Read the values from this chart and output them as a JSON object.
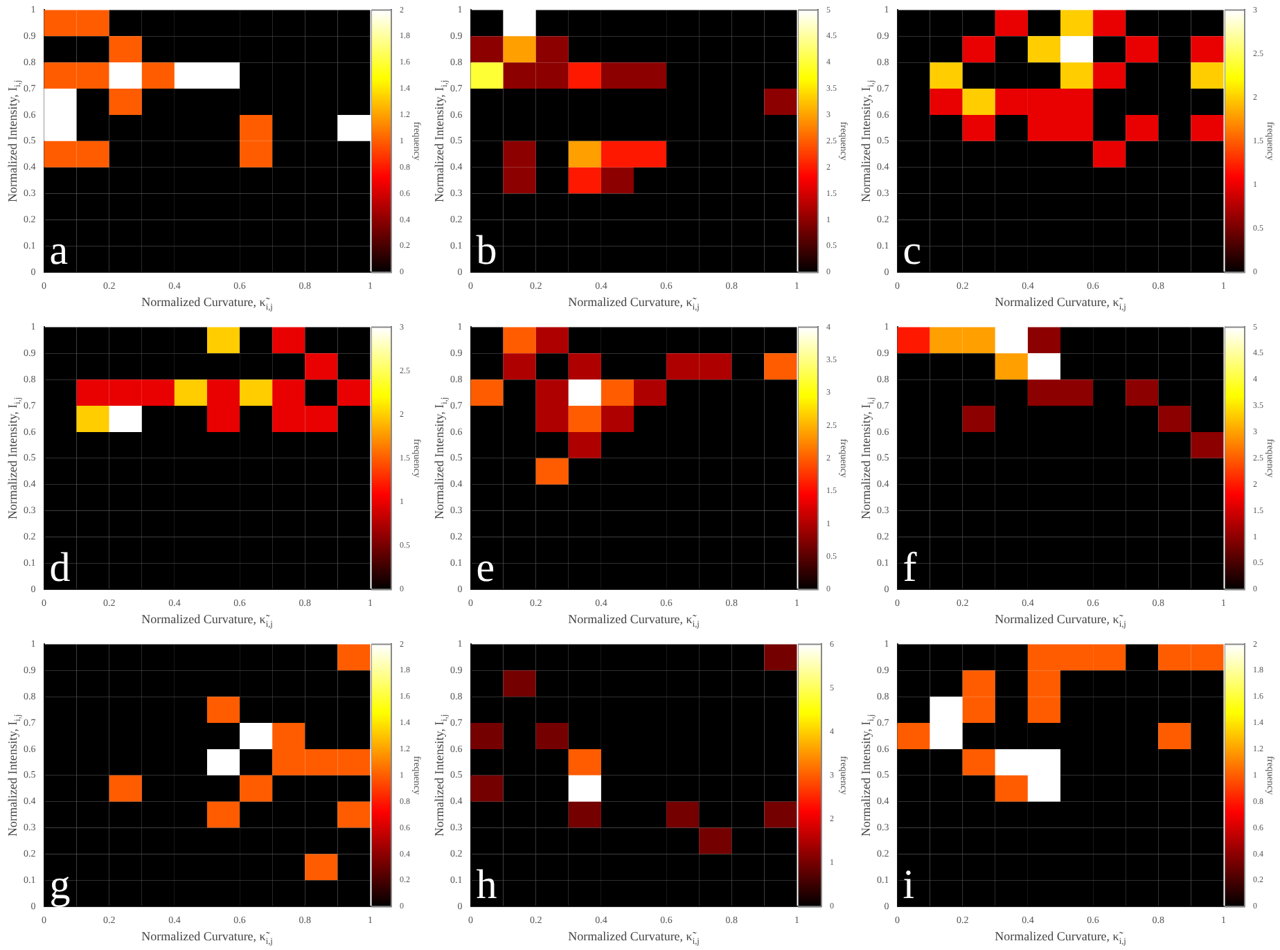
{
  "chart_data": [
    {
      "type": "heatmap",
      "title": "a",
      "xlabel": "Normalized Curvature, κ̃$_{i,j}$",
      "ylabel": "Normalized Intensity, I$_{i,j}$",
      "clabel": "frequency",
      "cells": [
        [
          1,
          1,
          0,
          0,
          0,
          0,
          0,
          0,
          0,
          0
        ],
        [
          0,
          0,
          1,
          0,
          0,
          0,
          0,
          0,
          0,
          0
        ],
        [
          1,
          1,
          2,
          1,
          2,
          2,
          0,
          0,
          0,
          0
        ],
        [
          2,
          0,
          1,
          0,
          0,
          0,
          0,
          0,
          0,
          0
        ],
        [
          2,
          0,
          0,
          0,
          0,
          0,
          1,
          0,
          0,
          2
        ],
        [
          1,
          1,
          0,
          0,
          0,
          0,
          1,
          0,
          0,
          0
        ],
        [
          0,
          0,
          0,
          0,
          0,
          0,
          0,
          0,
          0,
          0
        ],
        [
          0,
          0,
          0,
          0,
          0,
          0,
          0,
          0,
          0,
          0
        ],
        [
          0,
          0,
          0,
          0,
          0,
          0,
          0,
          0,
          0,
          0
        ],
        [
          0,
          0,
          0,
          0,
          0,
          0,
          0,
          0,
          0,
          0
        ]
      ],
      "clim": [
        0,
        2
      ],
      "cticks": [
        0,
        0.2,
        0.4,
        0.6,
        0.8,
        1,
        1.2,
        1.4,
        1.6,
        1.8,
        2
      ],
      "xlim": [
        0,
        1
      ],
      "xticks": [
        0,
        0.2,
        0.4,
        0.6,
        0.8,
        1
      ],
      "ylim": [
        0,
        1
      ],
      "yticks": [
        0,
        0.1,
        0.2,
        0.3,
        0.4,
        0.5,
        0.6,
        0.7,
        0.8,
        0.9,
        1
      ]
    },
    {
      "type": "heatmap",
      "title": "b",
      "xlabel": "Normalized Curvature, κ̃$_{i,j}$",
      "ylabel": "Normalized Intensity, I$_{i,j}$",
      "clabel": "frequency",
      "cells": [
        [
          0,
          5,
          0,
          0,
          0,
          0,
          0,
          0,
          0,
          0
        ],
        [
          1,
          3,
          1,
          0,
          0,
          0,
          0,
          0,
          0,
          0
        ],
        [
          4,
          1,
          1,
          2,
          1,
          1,
          0,
          0,
          0,
          0
        ],
        [
          0,
          0,
          0,
          0,
          0,
          0,
          0,
          0,
          0,
          1
        ],
        [
          0,
          0,
          0,
          0,
          0,
          0,
          0,
          0,
          0,
          0
        ],
        [
          0,
          1,
          0,
          3,
          2,
          2,
          0,
          0,
          0,
          0
        ],
        [
          0,
          1,
          0,
          2,
          1,
          0,
          0,
          0,
          0,
          0
        ],
        [
          0,
          0,
          0,
          0,
          0,
          0,
          0,
          0,
          0,
          0
        ],
        [
          0,
          0,
          0,
          0,
          0,
          0,
          0,
          0,
          0,
          0
        ],
        [
          0,
          0,
          0,
          0,
          0,
          0,
          0,
          0,
          0,
          0
        ]
      ],
      "clim": [
        0,
        5
      ],
      "cticks": [
        0,
        0.5,
        1,
        1.5,
        2,
        2.5,
        3,
        3.5,
        4,
        4.5,
        5
      ],
      "xlim": [
        0,
        1
      ],
      "xticks": [
        0,
        0.2,
        0.4,
        0.6,
        0.8,
        1
      ],
      "ylim": [
        0,
        1
      ],
      "yticks": [
        0,
        0.1,
        0.2,
        0.3,
        0.4,
        0.5,
        0.6,
        0.7,
        0.8,
        0.9,
        1
      ]
    },
    {
      "type": "heatmap",
      "title": "c",
      "xlabel": "Normalized Curvature, κ̃$_{i,j}$",
      "ylabel": "Normalized Intensity, I$_{i,j}$",
      "clabel": "frequency",
      "cells": [
        [
          0,
          0,
          0,
          1,
          0,
          2,
          1,
          0,
          0,
          0
        ],
        [
          0,
          0,
          1,
          0,
          2,
          3,
          0,
          1,
          0,
          1
        ],
        [
          0,
          2,
          0,
          0,
          0,
          2,
          1,
          0,
          0,
          2
        ],
        [
          0,
          1,
          2,
          1,
          1,
          1,
          0,
          0,
          0,
          0
        ],
        [
          0,
          0,
          1,
          0,
          1,
          1,
          0,
          1,
          0,
          1
        ],
        [
          0,
          0,
          0,
          0,
          0,
          0,
          1,
          0,
          0,
          0
        ],
        [
          0,
          0,
          0,
          0,
          0,
          0,
          0,
          0,
          0,
          0
        ],
        [
          0,
          0,
          0,
          0,
          0,
          0,
          0,
          0,
          0,
          0
        ],
        [
          0,
          0,
          0,
          0,
          0,
          0,
          0,
          0,
          0,
          0
        ],
        [
          0,
          0,
          0,
          0,
          0,
          0,
          0,
          0,
          0,
          0
        ]
      ],
      "clim": [
        0,
        3
      ],
      "cticks": [
        0,
        0.5,
        1,
        1.5,
        2,
        2.5,
        3
      ],
      "xlim": [
        0,
        1
      ],
      "xticks": [
        0,
        0.2,
        0.4,
        0.6,
        0.8,
        1
      ],
      "ylim": [
        0,
        1
      ],
      "yticks": [
        0,
        0.1,
        0.2,
        0.3,
        0.4,
        0.5,
        0.6,
        0.7,
        0.8,
        0.9,
        1
      ]
    },
    {
      "type": "heatmap",
      "title": "d",
      "xlabel": "Normalized Curvature, κ̃$_{i,j}$",
      "ylabel": "Normalized Intensity, I$_{i,j}$",
      "clabel": "frequency",
      "cells": [
        [
          0,
          0,
          0,
          0,
          0,
          2,
          0,
          1,
          0,
          0
        ],
        [
          0,
          0,
          0,
          0,
          0,
          0,
          0,
          0,
          1,
          0
        ],
        [
          0,
          1,
          1,
          1,
          2,
          1,
          2,
          1,
          0,
          1
        ],
        [
          0,
          2,
          3,
          0,
          0,
          1,
          0,
          1,
          1,
          0
        ],
        [
          0,
          0,
          0,
          0,
          0,
          0,
          0,
          0,
          0,
          0
        ],
        [
          0,
          0,
          0,
          0,
          0,
          0,
          0,
          0,
          0,
          0
        ],
        [
          0,
          0,
          0,
          0,
          0,
          0,
          0,
          0,
          0,
          0
        ],
        [
          0,
          0,
          0,
          0,
          0,
          0,
          0,
          0,
          0,
          0
        ],
        [
          0,
          0,
          0,
          0,
          0,
          0,
          0,
          0,
          0,
          0
        ],
        [
          0,
          0,
          0,
          0,
          0,
          0,
          0,
          0,
          0,
          0
        ]
      ],
      "clim": [
        0,
        3
      ],
      "cticks": [
        0,
        0.5,
        1,
        1.5,
        2,
        2.5,
        3
      ],
      "xlim": [
        0,
        1
      ],
      "xticks": [
        0,
        0.2,
        0.4,
        0.6,
        0.8,
        1
      ],
      "ylim": [
        0,
        1
      ],
      "yticks": [
        0,
        0.1,
        0.2,
        0.3,
        0.4,
        0.5,
        0.6,
        0.7,
        0.8,
        0.9,
        1
      ]
    },
    {
      "type": "heatmap",
      "title": "e",
      "xlabel": "Normalized Curvature, κ̃$_{i,j}$",
      "ylabel": "Normalized Intensity, I$_{i,j}$",
      "clabel": "frequency",
      "cells": [
        [
          0,
          2,
          1,
          0,
          0,
          0,
          0,
          0,
          0,
          0
        ],
        [
          0,
          1,
          0,
          1,
          0,
          0,
          1,
          1,
          0,
          2
        ],
        [
          2,
          0,
          1,
          4,
          2,
          1,
          0,
          0,
          0,
          0
        ],
        [
          0,
          0,
          1,
          2,
          1,
          0,
          0,
          0,
          0,
          0
        ],
        [
          0,
          0,
          0,
          1,
          0,
          0,
          0,
          0,
          0,
          0
        ],
        [
          0,
          0,
          2,
          0,
          0,
          0,
          0,
          0,
          0,
          0
        ],
        [
          0,
          0,
          0,
          0,
          0,
          0,
          0,
          0,
          0,
          0
        ],
        [
          0,
          0,
          0,
          0,
          0,
          0,
          0,
          0,
          0,
          0
        ],
        [
          0,
          0,
          0,
          0,
          0,
          0,
          0,
          0,
          0,
          0
        ],
        [
          0,
          0,
          0,
          0,
          0,
          0,
          0,
          0,
          0,
          0
        ]
      ],
      "clim": [
        0,
        4
      ],
      "cticks": [
        0,
        0.5,
        1,
        1.5,
        2,
        2.5,
        3,
        3.5,
        4
      ],
      "xlim": [
        0,
        1
      ],
      "xticks": [
        0,
        0.2,
        0.4,
        0.6,
        0.8,
        1
      ],
      "ylim": [
        0,
        1
      ],
      "yticks": [
        0,
        0.1,
        0.2,
        0.3,
        0.4,
        0.5,
        0.6,
        0.7,
        0.8,
        0.9,
        1
      ]
    },
    {
      "type": "heatmap",
      "title": "f",
      "xlabel": "Normalized Curvature, κ̃$_{i,j}$",
      "ylabel": "Normalized Intensity, I$_{i,j}$",
      "clabel": "frequency",
      "cells": [
        [
          2,
          3,
          3,
          5,
          1,
          0,
          0,
          0,
          0,
          0
        ],
        [
          0,
          0,
          0,
          3,
          5,
          0,
          0,
          0,
          0,
          0
        ],
        [
          0,
          0,
          0,
          0,
          1,
          1,
          0,
          1,
          0,
          0
        ],
        [
          0,
          0,
          1,
          0,
          0,
          0,
          0,
          0,
          1,
          0
        ],
        [
          0,
          0,
          0,
          0,
          0,
          0,
          0,
          0,
          0,
          1
        ],
        [
          0,
          0,
          0,
          0,
          0,
          0,
          0,
          0,
          0,
          0
        ],
        [
          0,
          0,
          0,
          0,
          0,
          0,
          0,
          0,
          0,
          0
        ],
        [
          0,
          0,
          0,
          0,
          0,
          0,
          0,
          0,
          0,
          0
        ],
        [
          0,
          0,
          0,
          0,
          0,
          0,
          0,
          0,
          0,
          0
        ],
        [
          0,
          0,
          0,
          0,
          0,
          0,
          0,
          0,
          0,
          0
        ]
      ],
      "clim": [
        0,
        5
      ],
      "cticks": [
        0,
        0.5,
        1,
        1.5,
        2,
        2.5,
        3,
        3.5,
        4,
        4.5,
        5
      ],
      "xlim": [
        0,
        1
      ],
      "xticks": [
        0,
        0.2,
        0.4,
        0.6,
        0.8,
        1
      ],
      "ylim": [
        0,
        1
      ],
      "yticks": [
        0,
        0.1,
        0.2,
        0.3,
        0.4,
        0.5,
        0.6,
        0.7,
        0.8,
        0.9,
        1
      ]
    },
    {
      "type": "heatmap",
      "title": "g",
      "xlabel": "Normalized Curvature, κ̃$_{i,j}$",
      "ylabel": "Normalized Intensity, I$_{i,j}$",
      "clabel": "frequency",
      "cells": [
        [
          0,
          0,
          0,
          0,
          0,
          0,
          0,
          0,
          0,
          1
        ],
        [
          0,
          0,
          0,
          0,
          0,
          0,
          0,
          0,
          0,
          0
        ],
        [
          0,
          0,
          0,
          0,
          0,
          1,
          0,
          0,
          0,
          0
        ],
        [
          0,
          0,
          0,
          0,
          0,
          0,
          2,
          1,
          0,
          0
        ],
        [
          0,
          0,
          0,
          0,
          0,
          2,
          0,
          1,
          1,
          1
        ],
        [
          0,
          0,
          1,
          0,
          0,
          0,
          1,
          0,
          0,
          0
        ],
        [
          0,
          0,
          0,
          0,
          0,
          1,
          0,
          0,
          0,
          1
        ],
        [
          0,
          0,
          0,
          0,
          0,
          0,
          0,
          0,
          0,
          0
        ],
        [
          0,
          0,
          0,
          0,
          0,
          0,
          0,
          0,
          1,
          0
        ],
        [
          0,
          0,
          0,
          0,
          0,
          0,
          0,
          0,
          0,
          0
        ]
      ],
      "clim": [
        0,
        2
      ],
      "cticks": [
        0,
        0.2,
        0.4,
        0.6,
        0.8,
        1,
        1.2,
        1.4,
        1.6,
        1.8,
        2
      ],
      "xlim": [
        0,
        1
      ],
      "xticks": [
        0,
        0.2,
        0.4,
        0.6,
        0.8,
        1
      ],
      "ylim": [
        0,
        1
      ],
      "yticks": [
        0,
        0.1,
        0.2,
        0.3,
        0.4,
        0.5,
        0.6,
        0.7,
        0.8,
        0.9,
        1
      ]
    },
    {
      "type": "heatmap",
      "title": "h",
      "xlabel": "Normalized Curvature, κ̃$_{i,j}$",
      "ylabel": "Normalized Intensity, I$_{i,j}$",
      "clabel": "frequency",
      "cells": [
        [
          0,
          0,
          0,
          0,
          0,
          0,
          0,
          0,
          0,
          1
        ],
        [
          0,
          1,
          0,
          0,
          0,
          0,
          0,
          0,
          0,
          0
        ],
        [
          0,
          0,
          0,
          0,
          0,
          0,
          0,
          0,
          0,
          0
        ],
        [
          1,
          0,
          1,
          0,
          0,
          0,
          0,
          0,
          0,
          0
        ],
        [
          0,
          0,
          0,
          3,
          0,
          0,
          0,
          0,
          0,
          0
        ],
        [
          1,
          0,
          0,
          6,
          0,
          0,
          0,
          0,
          0,
          0
        ],
        [
          0,
          0,
          0,
          1,
          0,
          0,
          1,
          0,
          0,
          1
        ],
        [
          0,
          0,
          0,
          0,
          0,
          0,
          0,
          1,
          0,
          0
        ],
        [
          0,
          0,
          0,
          0,
          0,
          0,
          0,
          0,
          0,
          0
        ],
        [
          0,
          0,
          0,
          0,
          0,
          0,
          0,
          0,
          0,
          0
        ]
      ],
      "clim": [
        0,
        6
      ],
      "cticks": [
        0,
        1,
        2,
        3,
        4,
        5,
        6
      ],
      "xlim": [
        0,
        1
      ],
      "xticks": [
        0,
        0.2,
        0.4,
        0.6,
        0.8,
        1
      ],
      "ylim": [
        0,
        1
      ],
      "yticks": [
        0,
        0.1,
        0.2,
        0.3,
        0.4,
        0.5,
        0.6,
        0.7,
        0.8,
        0.9,
        1
      ]
    },
    {
      "type": "heatmap",
      "title": "i",
      "xlabel": "Normalized Curvature, κ̃$_{i,j}$",
      "ylabel": "Normalized Intensity, I$_{i,j}$",
      "clabel": "frequency",
      "cells": [
        [
          0,
          0,
          0,
          0,
          1,
          1,
          1,
          0,
          1,
          1
        ],
        [
          0,
          0,
          1,
          0,
          1,
          0,
          0,
          0,
          0,
          0
        ],
        [
          0,
          2,
          1,
          0,
          1,
          0,
          0,
          0,
          0,
          0
        ],
        [
          1,
          2,
          0,
          0,
          0,
          0,
          0,
          0,
          1,
          0
        ],
        [
          0,
          0,
          1,
          2,
          2,
          0,
          0,
          0,
          0,
          0
        ],
        [
          0,
          0,
          0,
          1,
          2,
          0,
          0,
          0,
          0,
          0
        ],
        [
          0,
          0,
          0,
          0,
          0,
          0,
          0,
          0,
          0,
          0
        ],
        [
          0,
          0,
          0,
          0,
          0,
          0,
          0,
          0,
          0,
          0
        ],
        [
          0,
          0,
          0,
          0,
          0,
          0,
          0,
          0,
          0,
          0
        ],
        [
          0,
          0,
          0,
          0,
          0,
          0,
          0,
          0,
          0,
          0
        ]
      ],
      "clim": [
        0,
        2
      ],
      "cticks": [
        0,
        0.2,
        0.4,
        0.6,
        0.8,
        1,
        1.2,
        1.4,
        1.6,
        1.8,
        2
      ],
      "xlim": [
        0,
        1
      ],
      "xticks": [
        0,
        0.2,
        0.4,
        0.6,
        0.8,
        1
      ],
      "ylim": [
        0,
        1
      ],
      "yticks": [
        0,
        0.1,
        0.2,
        0.3,
        0.4,
        0.5,
        0.6,
        0.7,
        0.8,
        0.9,
        1
      ]
    }
  ]
}
